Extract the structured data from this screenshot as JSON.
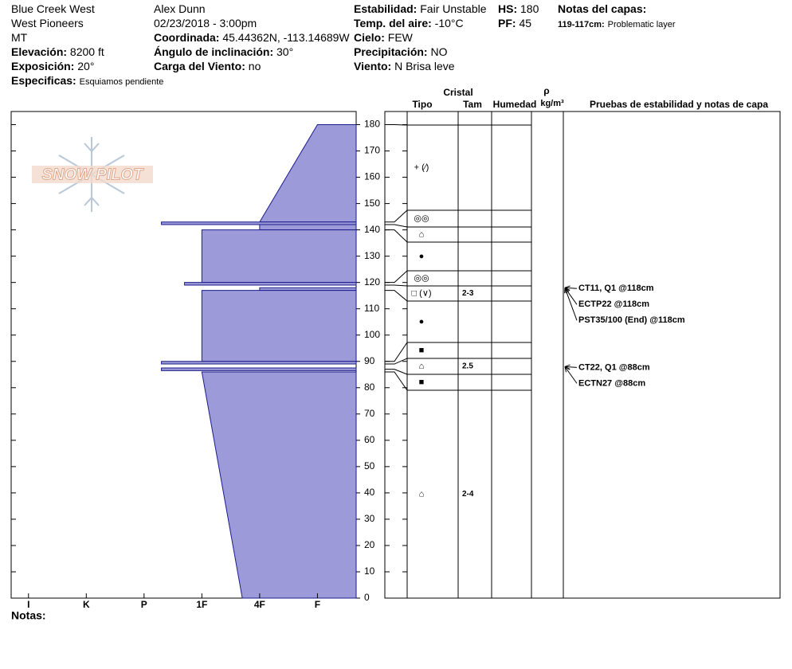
{
  "header": {
    "columns": [
      [
        {
          "text": "Blue Creek West"
        },
        {
          "text": "West Pioneers"
        },
        {
          "text": "MT"
        },
        {
          "label": "Elevación:",
          "value": "8200 ft"
        },
        {
          "label": "Exposición:",
          "value": "20°"
        },
        {
          "label": "Especificas:",
          "value": "Esquiamos pendiente"
        }
      ],
      [
        {
          "text": "Alex Dunn"
        },
        {
          "text": "02/23/2018 - 3:00pm"
        },
        {
          "label": "Coordinada:",
          "value": "45.44362N, -113.14689W"
        },
        {
          "label": "Ángulo de inclinación:",
          "value": "30°"
        },
        {
          "label": "Carga del Viento:",
          "value": "no"
        }
      ],
      [
        {
          "label": "Estabilidad:",
          "value": "Fair Unstable"
        },
        {
          "label": "Temp. del aire:",
          "value": "-10°C"
        },
        {
          "label": "Cielo:",
          "value": "FEW"
        },
        {
          "label": "Precipitación:",
          "value": "NO"
        },
        {
          "label": "Viento:",
          "value": "N Brisa leve"
        }
      ],
      [
        {
          "label": "HS:",
          "value": "180"
        },
        {
          "label": "PF:",
          "value": "45"
        }
      ],
      [
        {
          "label": "Notas del capas:"
        },
        {
          "label": "119-117cm:",
          "value": "Problematic layer"
        }
      ]
    ],
    "notes_label": "Notas:"
  },
  "chart_data": {
    "type": "hardness-profile",
    "logo": "SNOW PILOT",
    "color": "#9c9ad8",
    "ylim": [
      0,
      185
    ],
    "yticks": [
      0,
      10,
      20,
      30,
      40,
      50,
      60,
      70,
      80,
      90,
      100,
      110,
      120,
      130,
      140,
      150,
      160,
      170,
      180
    ],
    "xlim": [
      6.3,
      0.33
    ],
    "xticks": [
      {
        "value": 6,
        "label": "I"
      },
      {
        "value": 5,
        "label": "K"
      },
      {
        "value": 4,
        "label": "P"
      },
      {
        "value": 3,
        "label": "1F"
      },
      {
        "value": 2,
        "label": "4F"
      },
      {
        "value": 1,
        "label": "F"
      }
    ],
    "layers": [
      {
        "top": 180,
        "bottom": 143,
        "hardness_top": 1,
        "hardness_bottom": 2
      },
      {
        "top": 143,
        "bottom": 142,
        "hardness_top": 3.7,
        "hardness_bottom": 3.7
      },
      {
        "top": 142,
        "bottom": 140,
        "hardness_top": 2,
        "hardness_bottom": 2
      },
      {
        "top": 140,
        "bottom": 120,
        "hardness_top": 3,
        "hardness_bottom": 3
      },
      {
        "top": 120,
        "bottom": 119,
        "hardness_top": 3.3,
        "hardness_bottom": 3.3
      },
      {
        "top": 118,
        "bottom": 117,
        "hardness_top": 2,
        "hardness_bottom": 2
      },
      {
        "top": 117,
        "bottom": 90,
        "hardness_top": 3,
        "hardness_bottom": 3
      },
      {
        "top": 90,
        "bottom": 89,
        "hardness_top": 3.7,
        "hardness_bottom": 3.7
      },
      {
        "top": 87.5,
        "bottom": 86.5,
        "hardness_top": 3.7,
        "hardness_bottom": 3.7
      },
      {
        "top": 86,
        "bottom": 0,
        "hardness_top": 3,
        "hardness_bottom": 2.3
      }
    ]
  },
  "stratigraphy": {
    "headers": {
      "crystal": "Cristal",
      "type": "Tipo",
      "size": "Tam",
      "moisture": "Humedad",
      "density_symbol": "ρ",
      "density_unit": "kg/m³",
      "tests": "Pruebas de estabilidad y notas de capa"
    },
    "rows": [
      {
        "top": 180,
        "bottom": 143,
        "grain": "+ (⁄)"
      },
      {
        "top": 143,
        "bottom": 142,
        "grain": "◎◎"
      },
      {
        "top": 142,
        "bottom": 140,
        "grain": "⌂"
      },
      {
        "top": 140,
        "bottom": 120,
        "grain": "●"
      },
      {
        "top": 120,
        "bottom": 119,
        "grain": "◎◎"
      },
      {
        "top": 119,
        "bottom": 117,
        "grain": "□ (∨)",
        "size": "2-3"
      },
      {
        "top": 117,
        "bottom": 90,
        "grain": "●"
      },
      {
        "top": 90,
        "bottom": 89,
        "grain": "■"
      },
      {
        "top": 89,
        "bottom": 87,
        "grain": "⌂",
        "size": "2.5"
      },
      {
        "top": 87,
        "bottom": 86,
        "grain": "■"
      },
      {
        "top": 86,
        "bottom": 0,
        "grain": "⌂",
        "size": "2-4"
      }
    ],
    "tests": [
      {
        "text": "CT11, Q1 @118cm",
        "height": 118
      },
      {
        "text": "ECTP22 @118cm",
        "height": 118
      },
      {
        "text": "PST35/100 (End) @118cm",
        "height": 118
      },
      {
        "text": "CT22, Q1 @88cm",
        "height": 88
      },
      {
        "text": "ECTN27 @88cm",
        "height": 88
      }
    ]
  }
}
